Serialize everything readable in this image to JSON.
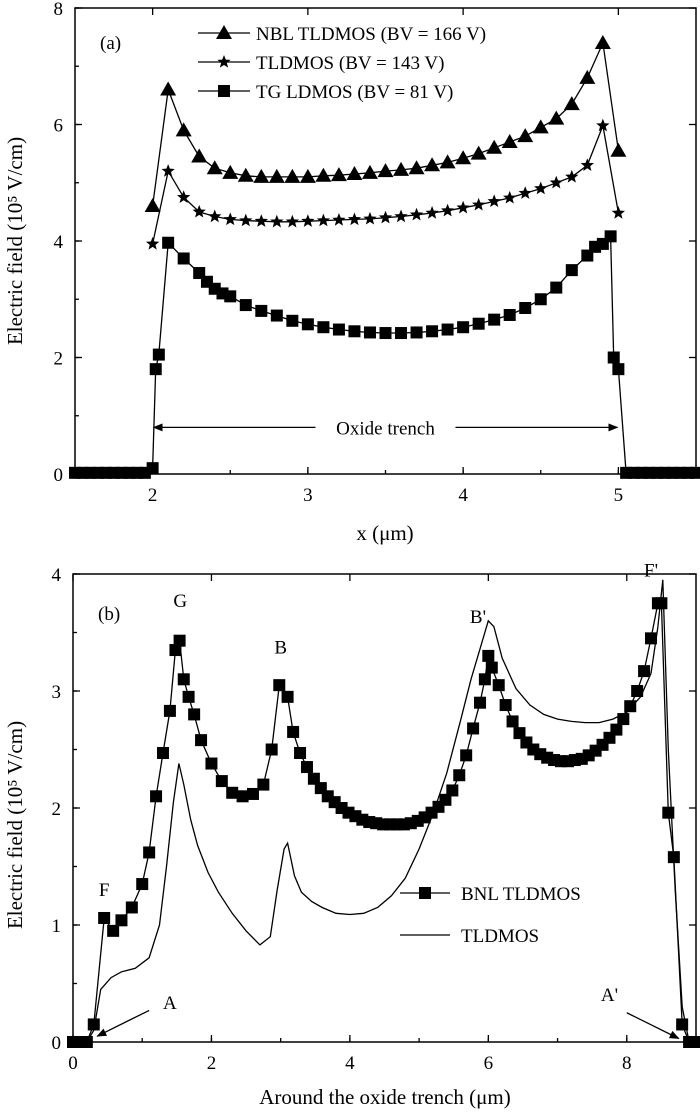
{
  "chart_data": [
    {
      "type": "line",
      "panel": "(a)",
      "xlabel": "x (μm)",
      "ylabel": "Electric field (10⁵ V/cm)",
      "xlim": [
        1.5,
        5.5
      ],
      "ylim": [
        0,
        8
      ],
      "xticks": [
        2,
        3,
        4,
        5
      ],
      "yticks": [
        0,
        2,
        4,
        6,
        8
      ],
      "legend_position": "top-center",
      "annotation": "Oxide trench",
      "annotation_span": [
        2,
        5
      ],
      "annotation_y": 0.8,
      "series": [
        {
          "name": "NBL TLDMOS (BV = 166 V)",
          "marker": "triangle",
          "x": [
            2.0,
            2.1,
            2.2,
            2.3,
            2.4,
            2.5,
            2.6,
            2.7,
            2.8,
            2.9,
            3.0,
            3.1,
            3.2,
            3.3,
            3.4,
            3.5,
            3.6,
            3.7,
            3.8,
            3.9,
            4.0,
            4.1,
            4.2,
            4.3,
            4.4,
            4.5,
            4.6,
            4.7,
            4.8,
            4.9,
            5.0
          ],
          "y": [
            4.6,
            6.6,
            5.9,
            5.45,
            5.25,
            5.17,
            5.12,
            5.1,
            5.1,
            5.1,
            5.1,
            5.12,
            5.13,
            5.15,
            5.17,
            5.2,
            5.22,
            5.25,
            5.3,
            5.35,
            5.42,
            5.5,
            5.6,
            5.7,
            5.8,
            5.95,
            6.1,
            6.35,
            6.8,
            7.4,
            5.55
          ]
        },
        {
          "name": "TLDMOS (BV = 143 V)",
          "marker": "star",
          "x": [
            2.0,
            2.1,
            2.2,
            2.3,
            2.4,
            2.5,
            2.6,
            2.7,
            2.8,
            2.9,
            3.0,
            3.1,
            3.2,
            3.3,
            3.4,
            3.5,
            3.6,
            3.7,
            3.8,
            3.9,
            4.0,
            4.1,
            4.2,
            4.3,
            4.4,
            4.5,
            4.6,
            4.7,
            4.8,
            4.9,
            5.0
          ],
          "y": [
            3.95,
            5.2,
            4.75,
            4.5,
            4.42,
            4.37,
            4.35,
            4.34,
            4.33,
            4.33,
            4.34,
            4.35,
            4.36,
            4.37,
            4.38,
            4.4,
            4.42,
            4.45,
            4.48,
            4.52,
            4.57,
            4.62,
            4.68,
            4.74,
            4.82,
            4.9,
            5.0,
            5.1,
            5.3,
            5.98,
            4.48
          ]
        },
        {
          "name": "TG LDMOS (BV = 81 V)",
          "marker": "square",
          "x": [
            1.5,
            1.55,
            1.6,
            1.65,
            1.7,
            1.75,
            1.8,
            1.85,
            1.9,
            1.95,
            2.0,
            2.02,
            2.04,
            2.1,
            2.2,
            2.3,
            2.35,
            2.4,
            2.45,
            2.5,
            2.6,
            2.7,
            2.8,
            2.9,
            3.0,
            3.1,
            3.2,
            3.3,
            3.4,
            3.5,
            3.6,
            3.7,
            3.8,
            3.9,
            4.0,
            4.1,
            4.2,
            4.3,
            4.4,
            4.5,
            4.6,
            4.7,
            4.8,
            4.85,
            4.9,
            4.95,
            4.97,
            5.0,
            5.05,
            5.1,
            5.15,
            5.2,
            5.25,
            5.3,
            5.35,
            5.4,
            5.45,
            5.5
          ],
          "y": [
            0.02,
            0.02,
            0.02,
            0.02,
            0.02,
            0.02,
            0.02,
            0.02,
            0.02,
            0.02,
            0.1,
            1.8,
            2.05,
            3.97,
            3.7,
            3.45,
            3.3,
            3.18,
            3.1,
            3.05,
            2.9,
            2.8,
            2.72,
            2.63,
            2.57,
            2.52,
            2.48,
            2.45,
            2.43,
            2.42,
            2.42,
            2.43,
            2.45,
            2.48,
            2.52,
            2.58,
            2.65,
            2.73,
            2.85,
            3.0,
            3.2,
            3.5,
            3.75,
            3.9,
            3.95,
            4.08,
            2.0,
            1.8,
            0.02,
            0.02,
            0.02,
            0.02,
            0.02,
            0.02,
            0.02,
            0.02,
            0.02,
            0.02
          ]
        }
      ]
    },
    {
      "type": "line",
      "panel": "(b)",
      "xlabel": "Around the oxide trench (μm)",
      "ylabel": "Electric field (10⁵ V/cm)",
      "xlim": [
        0,
        9
      ],
      "ylim": [
        0,
        4
      ],
      "xticks": [
        0,
        2,
        4,
        6,
        8
      ],
      "yticks": [
        0,
        1,
        2,
        3,
        4
      ],
      "legend_position": "bottom-right",
      "point_labels": [
        {
          "text": "F",
          "x": 0.45,
          "y": 1.25
        },
        {
          "text": "G",
          "x": 1.55,
          "y": 3.72
        },
        {
          "text": "B",
          "x": 3.0,
          "y": 3.32
        },
        {
          "text": "B'",
          "x": 5.85,
          "y": 3.58
        },
        {
          "text": "F'",
          "x": 8.35,
          "y": 3.98
        },
        {
          "text": "A",
          "x": 1.4,
          "y": 0.28
        },
        {
          "text": "A'",
          "x": 7.75,
          "y": 0.35
        }
      ],
      "arrows": [
        {
          "from": [
            1.1,
            0.27
          ],
          "to": [
            0.35,
            0.05
          ]
        },
        {
          "from": [
            8.0,
            0.25
          ],
          "to": [
            8.75,
            0.03
          ]
        }
      ],
      "series": [
        {
          "name": "BNL TLDMOS",
          "marker": "square",
          "x": [
            0.0,
            0.1,
            0.2,
            0.3,
            0.45,
            0.58,
            0.7,
            0.85,
            1.0,
            1.1,
            1.2,
            1.3,
            1.4,
            1.48,
            1.54,
            1.6,
            1.67,
            1.75,
            1.85,
            2.0,
            2.15,
            2.3,
            2.45,
            2.6,
            2.75,
            2.87,
            2.98,
            3.1,
            3.18,
            3.28,
            3.38,
            3.48,
            3.58,
            3.68,
            3.78,
            3.88,
            3.98,
            4.08,
            4.18,
            4.28,
            4.38,
            4.48,
            4.58,
            4.68,
            4.78,
            4.88,
            4.98,
            5.08,
            5.18,
            5.28,
            5.38,
            5.48,
            5.58,
            5.68,
            5.78,
            5.88,
            5.95,
            6.0,
            6.05,
            6.15,
            6.25,
            6.35,
            6.45,
            6.55,
            6.65,
            6.75,
            6.85,
            6.95,
            7.05,
            7.15,
            7.25,
            7.35,
            7.45,
            7.55,
            7.65,
            7.75,
            7.85,
            7.95,
            8.05,
            8.15,
            8.25,
            8.35,
            8.45,
            8.5,
            8.6,
            8.68,
            8.8,
            8.9,
            9.0
          ],
          "y": [
            0.0,
            0.0,
            0.0,
            0.15,
            1.06,
            0.95,
            1.04,
            1.15,
            1.35,
            1.62,
            2.1,
            2.47,
            2.83,
            3.35,
            3.43,
            3.1,
            2.95,
            2.8,
            2.58,
            2.38,
            2.23,
            2.13,
            2.1,
            2.12,
            2.2,
            2.5,
            3.05,
            2.95,
            2.65,
            2.47,
            2.35,
            2.25,
            2.17,
            2.1,
            2.05,
            2.0,
            1.96,
            1.93,
            1.9,
            1.88,
            1.87,
            1.86,
            1.86,
            1.86,
            1.86,
            1.87,
            1.89,
            1.92,
            1.96,
            2.01,
            2.07,
            2.15,
            2.28,
            2.45,
            2.68,
            2.9,
            3.1,
            3.3,
            3.2,
            3.05,
            2.88,
            2.74,
            2.64,
            2.56,
            2.5,
            2.46,
            2.43,
            2.41,
            2.4,
            2.4,
            2.41,
            2.42,
            2.45,
            2.49,
            2.54,
            2.6,
            2.67,
            2.76,
            2.87,
            3.0,
            3.17,
            3.45,
            3.75,
            3.75,
            1.96,
            1.58,
            0.15,
            0.0,
            0.0
          ]
        },
        {
          "name": "TLDMOS",
          "marker": "none",
          "x": [
            0.0,
            0.2,
            0.3,
            0.4,
            0.55,
            0.7,
            0.9,
            1.1,
            1.25,
            1.35,
            1.45,
            1.53,
            1.6,
            1.7,
            1.8,
            1.95,
            2.1,
            2.3,
            2.5,
            2.7,
            2.85,
            2.95,
            3.05,
            3.1,
            3.2,
            3.3,
            3.45,
            3.6,
            3.8,
            4.0,
            4.2,
            4.4,
            4.6,
            4.8,
            5.0,
            5.2,
            5.4,
            5.6,
            5.75,
            5.9,
            6.0,
            6.08,
            6.2,
            6.4,
            6.6,
            6.8,
            7.0,
            7.2,
            7.4,
            7.6,
            7.8,
            8.0,
            8.2,
            8.35,
            8.45,
            8.52,
            8.6,
            8.7,
            8.8,
            8.9,
            9.0
          ],
          "y": [
            0.0,
            0.0,
            0.1,
            0.45,
            0.55,
            0.6,
            0.63,
            0.72,
            1.0,
            1.5,
            2.05,
            2.38,
            2.2,
            1.9,
            1.68,
            1.45,
            1.28,
            1.1,
            0.95,
            0.83,
            0.9,
            1.3,
            1.65,
            1.7,
            1.42,
            1.28,
            1.2,
            1.15,
            1.1,
            1.09,
            1.1,
            1.15,
            1.25,
            1.4,
            1.65,
            1.95,
            2.3,
            2.75,
            3.1,
            3.4,
            3.6,
            3.55,
            3.28,
            3.02,
            2.88,
            2.8,
            2.76,
            2.74,
            2.73,
            2.73,
            2.76,
            2.82,
            2.95,
            3.15,
            3.55,
            3.95,
            2.5,
            1.3,
            0.3,
            0.0,
            0.0
          ]
        }
      ]
    }
  ]
}
